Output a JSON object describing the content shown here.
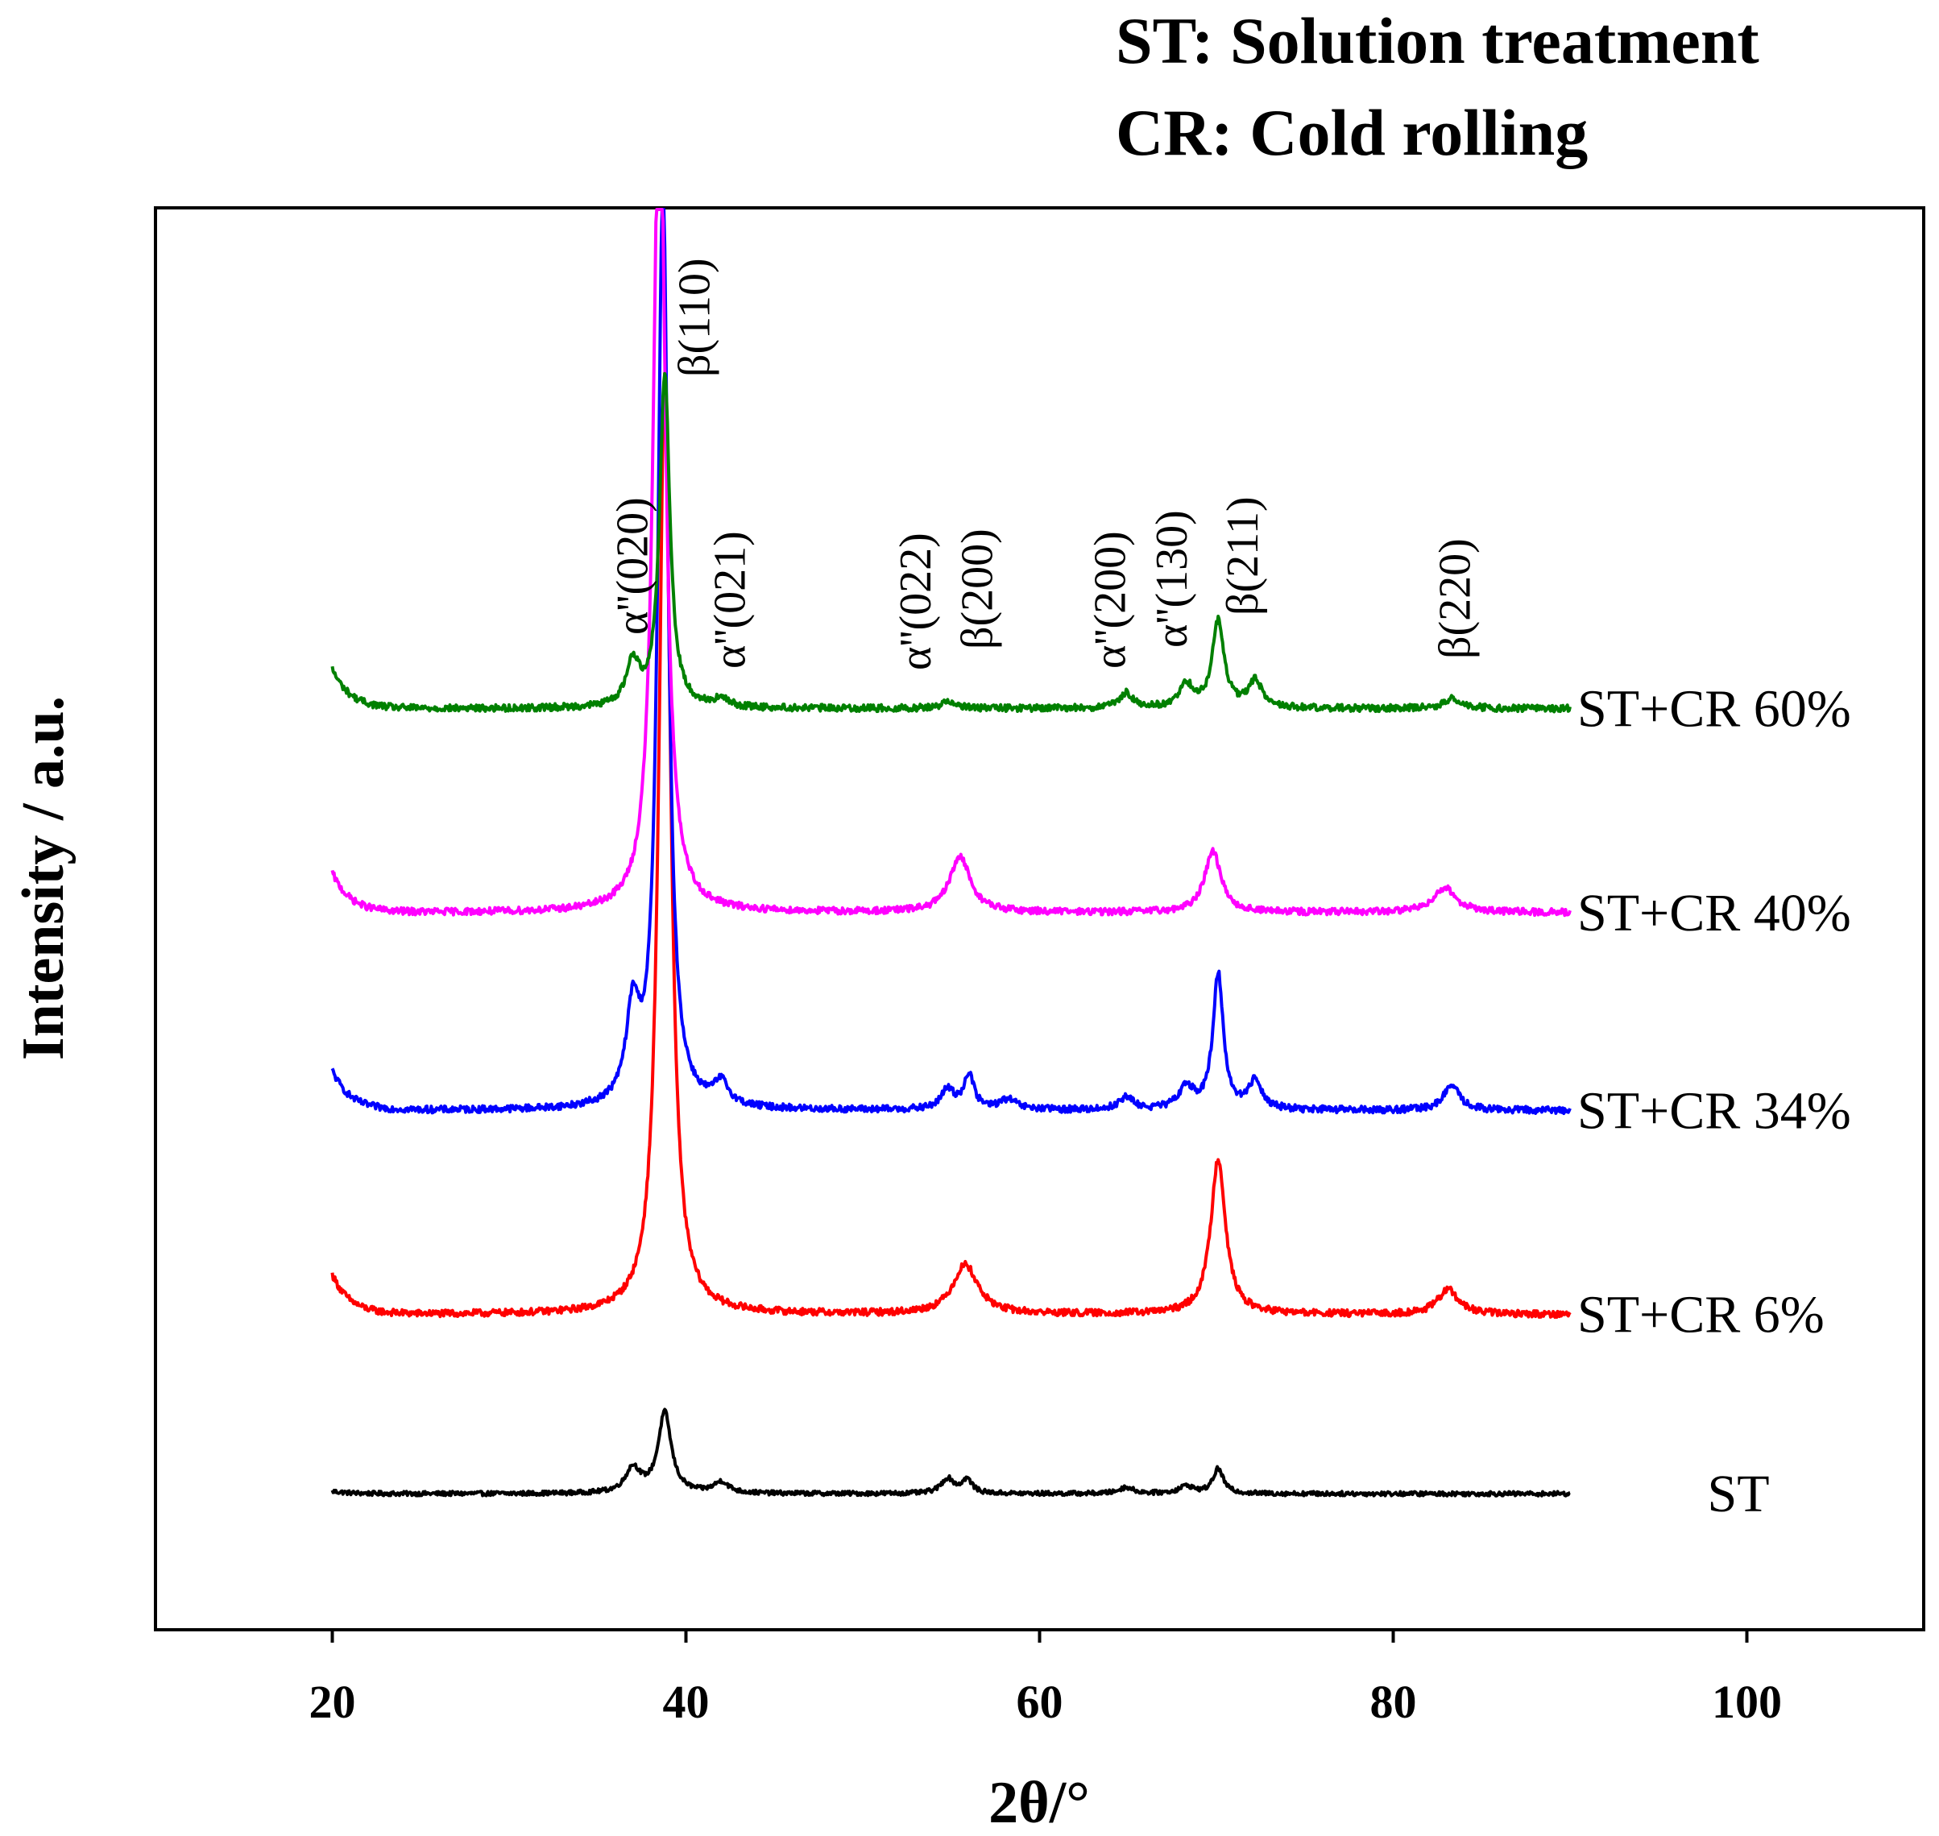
{
  "chart_data": {
    "type": "line",
    "title_lines": [
      "ST: Solution treatment",
      "CR: Cold rolling"
    ],
    "xlabel": "2θ/°",
    "ylabel": "Intensity / a.u.",
    "xlim": [
      10,
      110
    ],
    "xticks": [
      20,
      40,
      60,
      80,
      100
    ],
    "xtick_labels": [
      "20",
      "40",
      "60",
      "80",
      "100"
    ],
    "y_axis_ticks": false,
    "series": [
      {
        "name": "ST",
        "label": "ST",
        "color": "#000000",
        "offset": 0,
        "baseline": 0.0,
        "peaks": [
          [
            37.0,
            2.0,
            0.5
          ],
          [
            38.8,
            6.5,
            0.45
          ],
          [
            42.0,
            0.9,
            0.5
          ],
          [
            54.8,
            1.2,
            0.45
          ],
          [
            55.9,
            1.1,
            0.35
          ],
          [
            64.9,
            0.5,
            0.5
          ],
          [
            68.3,
            0.6,
            0.5
          ],
          [
            70.1,
            2.0,
            0.35
          ]
        ]
      },
      {
        "name": "ST+CR 6%",
        "label": "ST+CR 6%",
        "color": "#ff0000",
        "offset": 14.5,
        "baseline": 0.0,
        "peaks": [
          [
            38.8,
            76,
            0.4
          ],
          [
            55.8,
            4.0,
            0.85
          ],
          [
            70.1,
            12.6,
            0.5
          ],
          [
            83.1,
            2.0,
            0.7
          ]
        ]
      },
      {
        "name": "ST+CR 34%",
        "label": "ST+CR 34%",
        "color": "#0000ff",
        "offset": 31.0,
        "baseline": 0.0,
        "peaks": [
          [
            37.0,
            7.2,
            0.45
          ],
          [
            38.7,
            75,
            0.35
          ],
          [
            42.0,
            1.8,
            0.5
          ],
          [
            54.8,
            1.6,
            0.45
          ],
          [
            56.0,
            2.8,
            0.35
          ],
          [
            58.2,
            0.8,
            0.6
          ],
          [
            64.9,
            1.0,
            0.5
          ],
          [
            68.3,
            1.8,
            0.5
          ],
          [
            70.1,
            11.0,
            0.35
          ],
          [
            72.2,
            2.3,
            0.45
          ],
          [
            83.3,
            2.0,
            0.55
          ]
        ]
      },
      {
        "name": "ST+CR 40%",
        "label": "ST+CR 40%",
        "color": "#ff00ff",
        "offset": 47.0,
        "baseline": 0.0,
        "peaks": [
          [
            38.5,
            70,
            0.4
          ],
          [
            55.5,
            4.5,
            0.7
          ],
          [
            69.8,
            5.0,
            0.55
          ],
          [
            82.9,
            2.0,
            0.8
          ]
        ]
      },
      {
        "name": "ST+CR 60%",
        "label": "ST+CR 60%",
        "color": "#008000",
        "offset": 63.5,
        "baseline": 0.0,
        "peaks": [
          [
            37.0,
            3.5,
            0.45
          ],
          [
            38.8,
            27,
            0.35
          ],
          [
            42.0,
            0.6,
            0.5
          ],
          [
            54.9,
            0.6,
            0.5
          ],
          [
            64.9,
            1.2,
            0.45
          ],
          [
            68.3,
            1.8,
            0.5
          ],
          [
            70.1,
            7.0,
            0.4
          ],
          [
            72.2,
            2.2,
            0.45
          ],
          [
            83.4,
            0.8,
            0.6
          ]
        ]
      }
    ],
    "ylim": [
      -11,
      104
    ],
    "annotations": [
      {
        "text": "α''(020)",
        "x": 37.0
      },
      {
        "text": "β(110)",
        "x": 40.5
      },
      {
        "text": "α''(021)",
        "x": 42.5
      },
      {
        "text": "α''(022)",
        "x": 53.0
      },
      {
        "text": "β(200)",
        "x": 56.5
      },
      {
        "text": "α''(200)",
        "x": 64.0
      },
      {
        "text": "α''(130)",
        "x": 67.5
      },
      {
        "text": "β(211)",
        "x": 71.5
      },
      {
        "text": "β(220)",
        "x": 83.5
      }
    ],
    "x_range_data": [
      20,
      90
    ]
  }
}
